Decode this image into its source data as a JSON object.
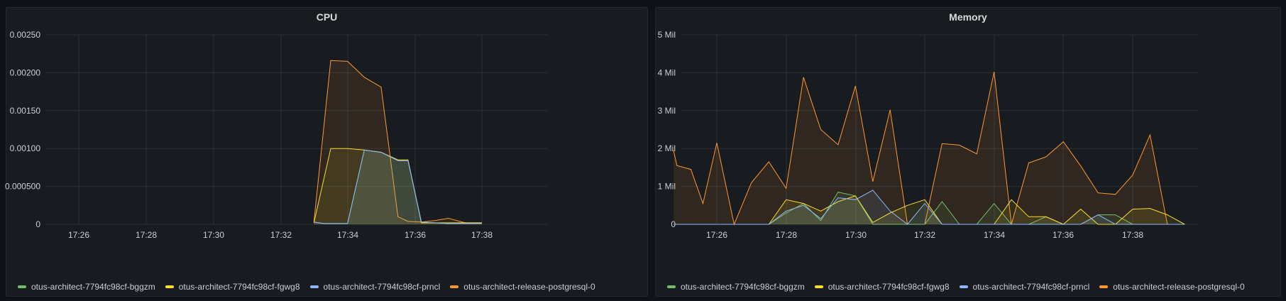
{
  "colors": {
    "bggzm": "#73bf69",
    "fgwg8": "#fade2a",
    "prncl": "#8ab8ff",
    "postgres": "#ff9830",
    "grid": "#2c3035"
  },
  "chart_data": [
    {
      "type": "area",
      "title": "CPU",
      "xticks": [
        "17:26",
        "17:28",
        "17:30",
        "17:32",
        "17:34",
        "17:36",
        "17:38"
      ],
      "yticks": [
        "0",
        "0.000500",
        "0.00100",
        "0.00150",
        "0.00200",
        "0.00250"
      ],
      "ylim": [
        0,
        0.0025
      ],
      "xlim": [
        25.0,
        39.8
      ],
      "grid": true,
      "legend_position": "bottom",
      "series": [
        {
          "name": "otus-architect-7794fc98cf-bggzm",
          "color": "#73bf69",
          "x": [
            33.0,
            33.3,
            34.0,
            34.5,
            35.0,
            35.5,
            35.8,
            36.2,
            36.6,
            37.0,
            37.5,
            38.0
          ],
          "y": [
            3e-05,
            1e-05,
            1e-05,
            0.00098,
            0.00095,
            0.00084,
            0.00084,
            2e-05,
            2e-05,
            1e-05,
            1e-05,
            1e-05
          ]
        },
        {
          "name": "otus-architect-7794fc98cf-fgwg8",
          "color": "#fade2a",
          "x": [
            33.0,
            33.5,
            34.0,
            34.5,
            35.0,
            35.5,
            35.8,
            36.2,
            36.6,
            37.0,
            37.5,
            38.0
          ],
          "y": [
            2e-05,
            0.001,
            0.001,
            0.00098,
            0.00095,
            0.00085,
            0.00085,
            2e-05,
            2e-05,
            2e-05,
            2e-05,
            2e-05
          ]
        },
        {
          "name": "otus-architect-7794fc98cf-prncl",
          "color": "#8ab8ff",
          "x": [
            33.0,
            33.3,
            34.0,
            34.5,
            35.0,
            35.5,
            35.8,
            36.2,
            36.6,
            37.0,
            37.5,
            38.0
          ],
          "y": [
            3e-05,
            1e-05,
            1e-05,
            0.00098,
            0.00095,
            0.00084,
            0.00084,
            3e-05,
            2e-05,
            1e-05,
            1e-05,
            1e-05
          ]
        },
        {
          "name": "otus-architect-release-postgresql-0",
          "color": "#ff9830",
          "x": [
            33.0,
            33.5,
            34.0,
            34.5,
            35.0,
            35.5,
            35.8,
            36.2,
            36.6,
            37.0,
            37.5,
            38.0
          ],
          "y": [
            3e-05,
            0.00216,
            0.00215,
            0.00194,
            0.00181,
            0.0001,
            4e-05,
            3e-05,
            5e-05,
            8e-05,
            2e-05,
            2e-05
          ]
        }
      ]
    },
    {
      "type": "area",
      "title": "Memory",
      "xticks": [
        "17:26",
        "17:28",
        "17:30",
        "17:32",
        "17:34",
        "17:36",
        "17:38"
      ],
      "yticks": [
        "0",
        "1 Mil",
        "2 Mil",
        "3 Mil",
        "4 Mil",
        "5 Mil"
      ],
      "ylim": [
        0,
        5000000
      ],
      "xlim": [
        24.75,
        39.5
      ],
      "grid": true,
      "legend_position": "bottom",
      "series": [
        {
          "name": "otus-architect-7794fc98cf-bggzm",
          "color": "#73bf69",
          "x": [
            24.75,
            27.0,
            27.5,
            28.0,
            28.5,
            29.0,
            29.5,
            30.0,
            30.5,
            31.0,
            31.5,
            32.0,
            32.5,
            33.0,
            33.5,
            34.0,
            34.5,
            35.0,
            35.5,
            36.0,
            36.5,
            37.0,
            37.5,
            38.0,
            38.5,
            39.0,
            39.5
          ],
          "y": [
            0,
            0,
            0,
            300000,
            550000,
            100000,
            850000,
            750000,
            0,
            0,
            0,
            0,
            600000,
            0,
            0,
            550000,
            0,
            0,
            200000,
            0,
            0,
            250000,
            250000,
            0,
            0,
            0,
            0
          ]
        },
        {
          "name": "otus-architect-7794fc98cf-fgwg8",
          "color": "#fade2a",
          "x": [
            24.75,
            27.0,
            27.5,
            28.0,
            28.5,
            29.0,
            29.5,
            30.0,
            30.5,
            31.0,
            31.5,
            32.0,
            32.5,
            33.0,
            33.5,
            34.0,
            34.5,
            35.0,
            35.5,
            36.0,
            36.5,
            37.0,
            37.5,
            38.0,
            38.5,
            39.0,
            39.5
          ],
          "y": [
            0,
            0,
            0,
            650000,
            550000,
            350000,
            600000,
            750000,
            50000,
            300000,
            500000,
            650000,
            0,
            0,
            0,
            0,
            650000,
            200000,
            200000,
            0,
            400000,
            0,
            0,
            400000,
            420000,
            250000,
            0
          ]
        },
        {
          "name": "otus-architect-7794fc98cf-prncl",
          "color": "#8ab8ff",
          "x": [
            24.75,
            27.0,
            27.5,
            28.0,
            28.5,
            29.0,
            29.5,
            30.0,
            30.5,
            31.0,
            31.5,
            32.0,
            32.5,
            33.0,
            33.5,
            34.0,
            34.5,
            35.0,
            35.5,
            36.0,
            36.5,
            37.0,
            37.5,
            38.0,
            38.5,
            39.0,
            39.5
          ],
          "y": [
            0,
            0,
            0,
            350000,
            500000,
            150000,
            700000,
            650000,
            900000,
            350000,
            0,
            550000,
            0,
            0,
            0,
            0,
            0,
            0,
            0,
            0,
            0,
            250000,
            0,
            0,
            0,
            0,
            0
          ]
        },
        {
          "name": "otus-architect-release-postgresql-0",
          "color": "#ff9830",
          "x": [
            24.75,
            24.85,
            25.25,
            25.6,
            26.0,
            26.5,
            27.0,
            27.5,
            28.0,
            28.5,
            29.0,
            29.5,
            30.0,
            30.5,
            31.0,
            31.5,
            32.0,
            32.5,
            33.0,
            33.5,
            34.0,
            34.5,
            35.0,
            35.5,
            36.0,
            36.5,
            37.0,
            37.5,
            38.0,
            38.5,
            39.0,
            39.5
          ],
          "y": [
            1950000,
            1550000,
            1450000,
            550000,
            2150000,
            0,
            1100000,
            1650000,
            950000,
            3880000,
            2500000,
            2100000,
            3650000,
            1130000,
            3020000,
            0,
            0,
            2130000,
            2090000,
            1860000,
            4020000,
            0,
            1620000,
            1780000,
            2180000,
            1540000,
            830000,
            790000,
            1300000,
            2360000,
            0,
            0
          ]
        }
      ]
    }
  ]
}
